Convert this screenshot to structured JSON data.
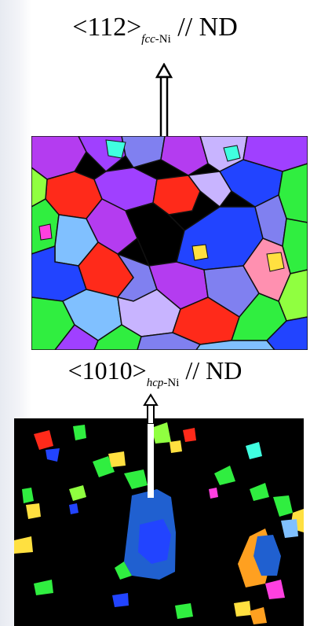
{
  "figure": {
    "top_label": {
      "prefix": "<112>",
      "subscript_italic": "fcc",
      "subscript_rest": "-Ni",
      "suffix": " // ND"
    },
    "bottom_label": {
      "prefix": "<1010>",
      "subscript_italic": "hcp",
      "subscript_rest": "-Ni",
      "suffix": " // ND"
    },
    "colors": {
      "red": "#ff2a1a",
      "violet": "#a040ff",
      "purple": "#b43cf0",
      "blue": "#2244ff",
      "lightblue": "#80c0ff",
      "periwinkle": "#8080f0",
      "lavender": "#c8b4ff",
      "green": "#30ee40",
      "lime": "#90ff40",
      "yellow": "#ffe040",
      "orange": "#ffa020",
      "magenta": "#ff40e0",
      "pink": "#ff90b0",
      "cyan": "#40ffe0",
      "navy": "#2060d0",
      "black": "#000000"
    }
  }
}
